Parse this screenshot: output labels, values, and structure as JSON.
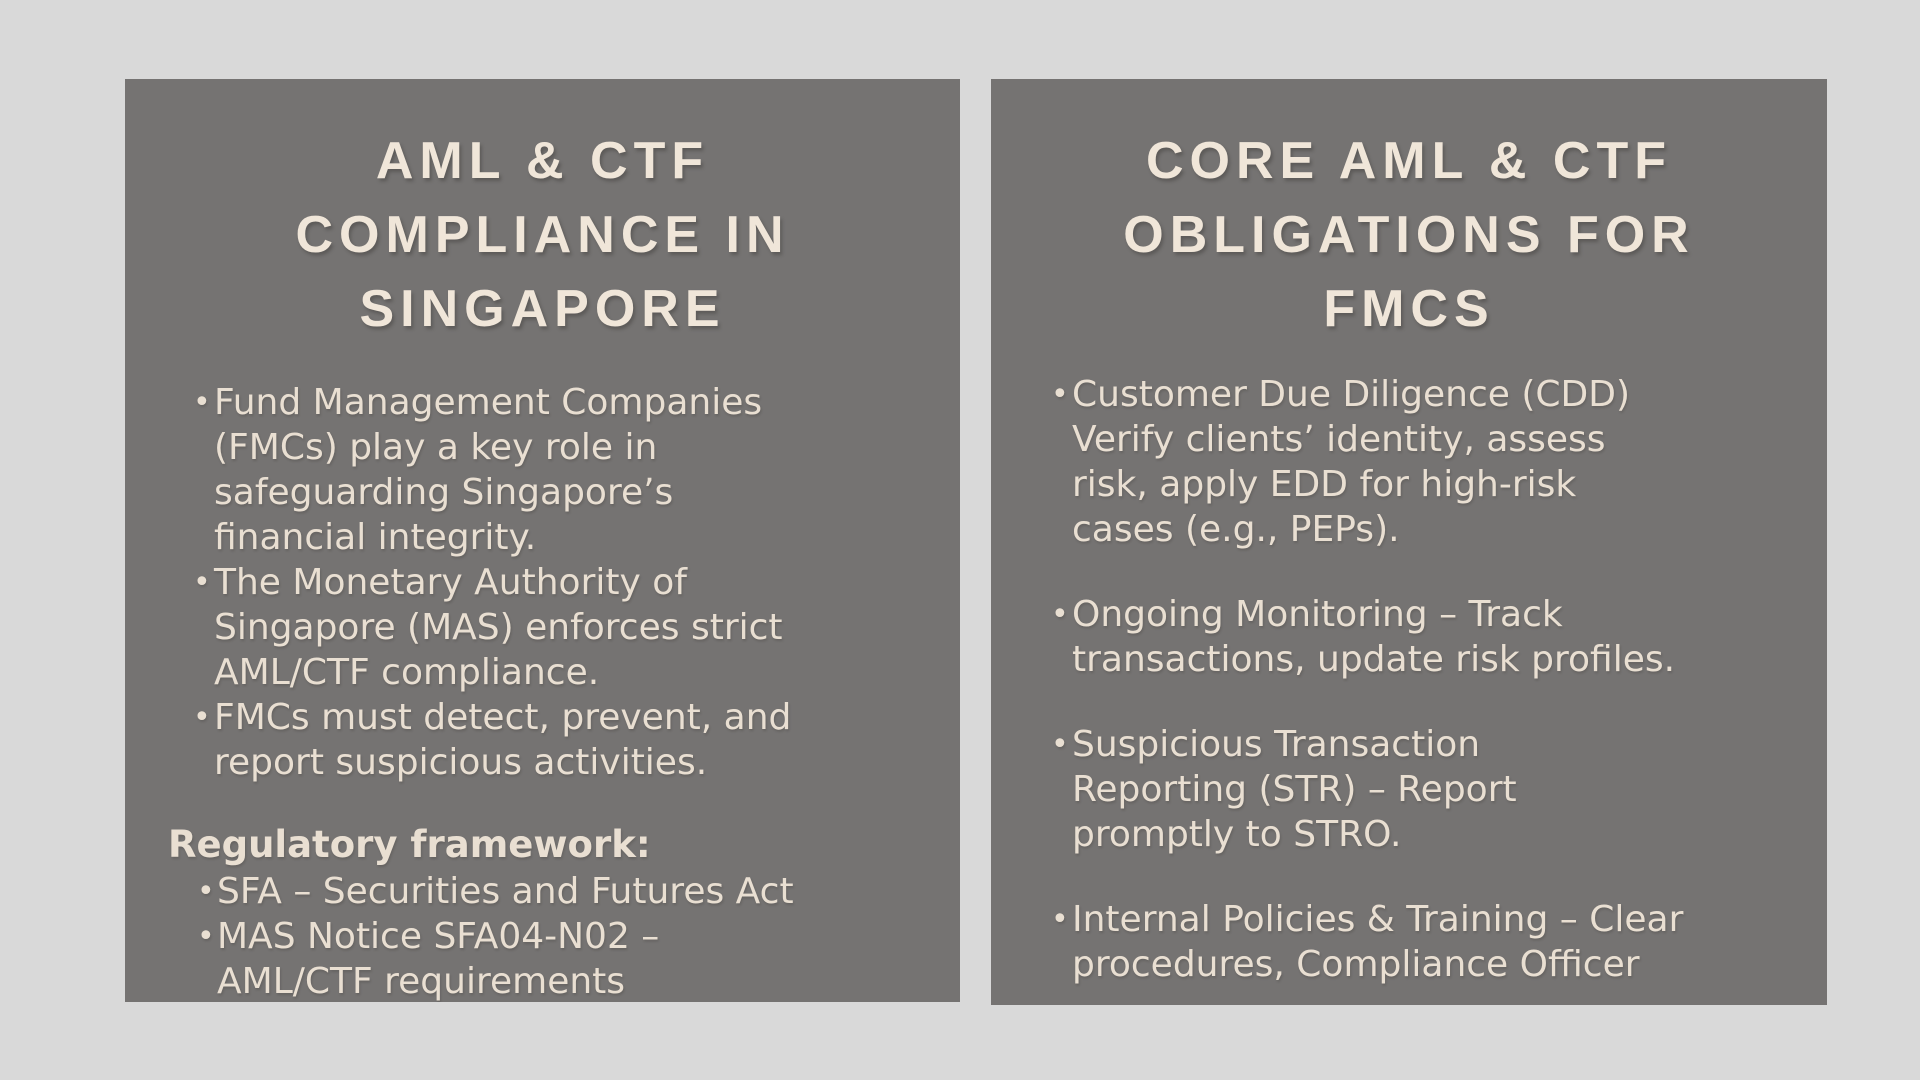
{
  "canvas": {
    "background": "#d9d9d9"
  },
  "colors": {
    "card_background": "#757372",
    "title_text": "#f0e6d9",
    "body_text": "#e9dfd2"
  },
  "left_card": {
    "title": "AML & CTF\nCOMPLIANCE IN\nSINGAPORE",
    "bullets": [
      "Fund Management Companies\n(FMCs) play a key role in\nsafeguarding Singapore’s\nfinancial integrity.",
      "The Monetary Authority of\nSingapore (MAS) enforces strict\nAML/CTF compliance.",
      "FMCs must detect, prevent, and\nreport suspicious activities."
    ],
    "subheading": "Regulatory framework:",
    "sub_bullets": [
      "SFA – Securities and Futures Act",
      "MAS Notice SFA04-N02 –\nAML/CTF requirements"
    ]
  },
  "right_card": {
    "title": "CORE AML & CTF\nOBLIGATIONS FOR\nFMCS",
    "bullets": [
      "Customer Due Diligence (CDD)\nVerify clients’ identity, assess\nrisk, apply EDD for high-risk\ncases (e.g., PEPs).",
      "Ongoing Monitoring – Track\ntransactions, update risk profiles.",
      "Suspicious Transaction\nReporting (STR) – Report\npromptly to STRO.",
      "Internal Policies & Training – Clear\nprocedures, Compliance Officer"
    ]
  }
}
